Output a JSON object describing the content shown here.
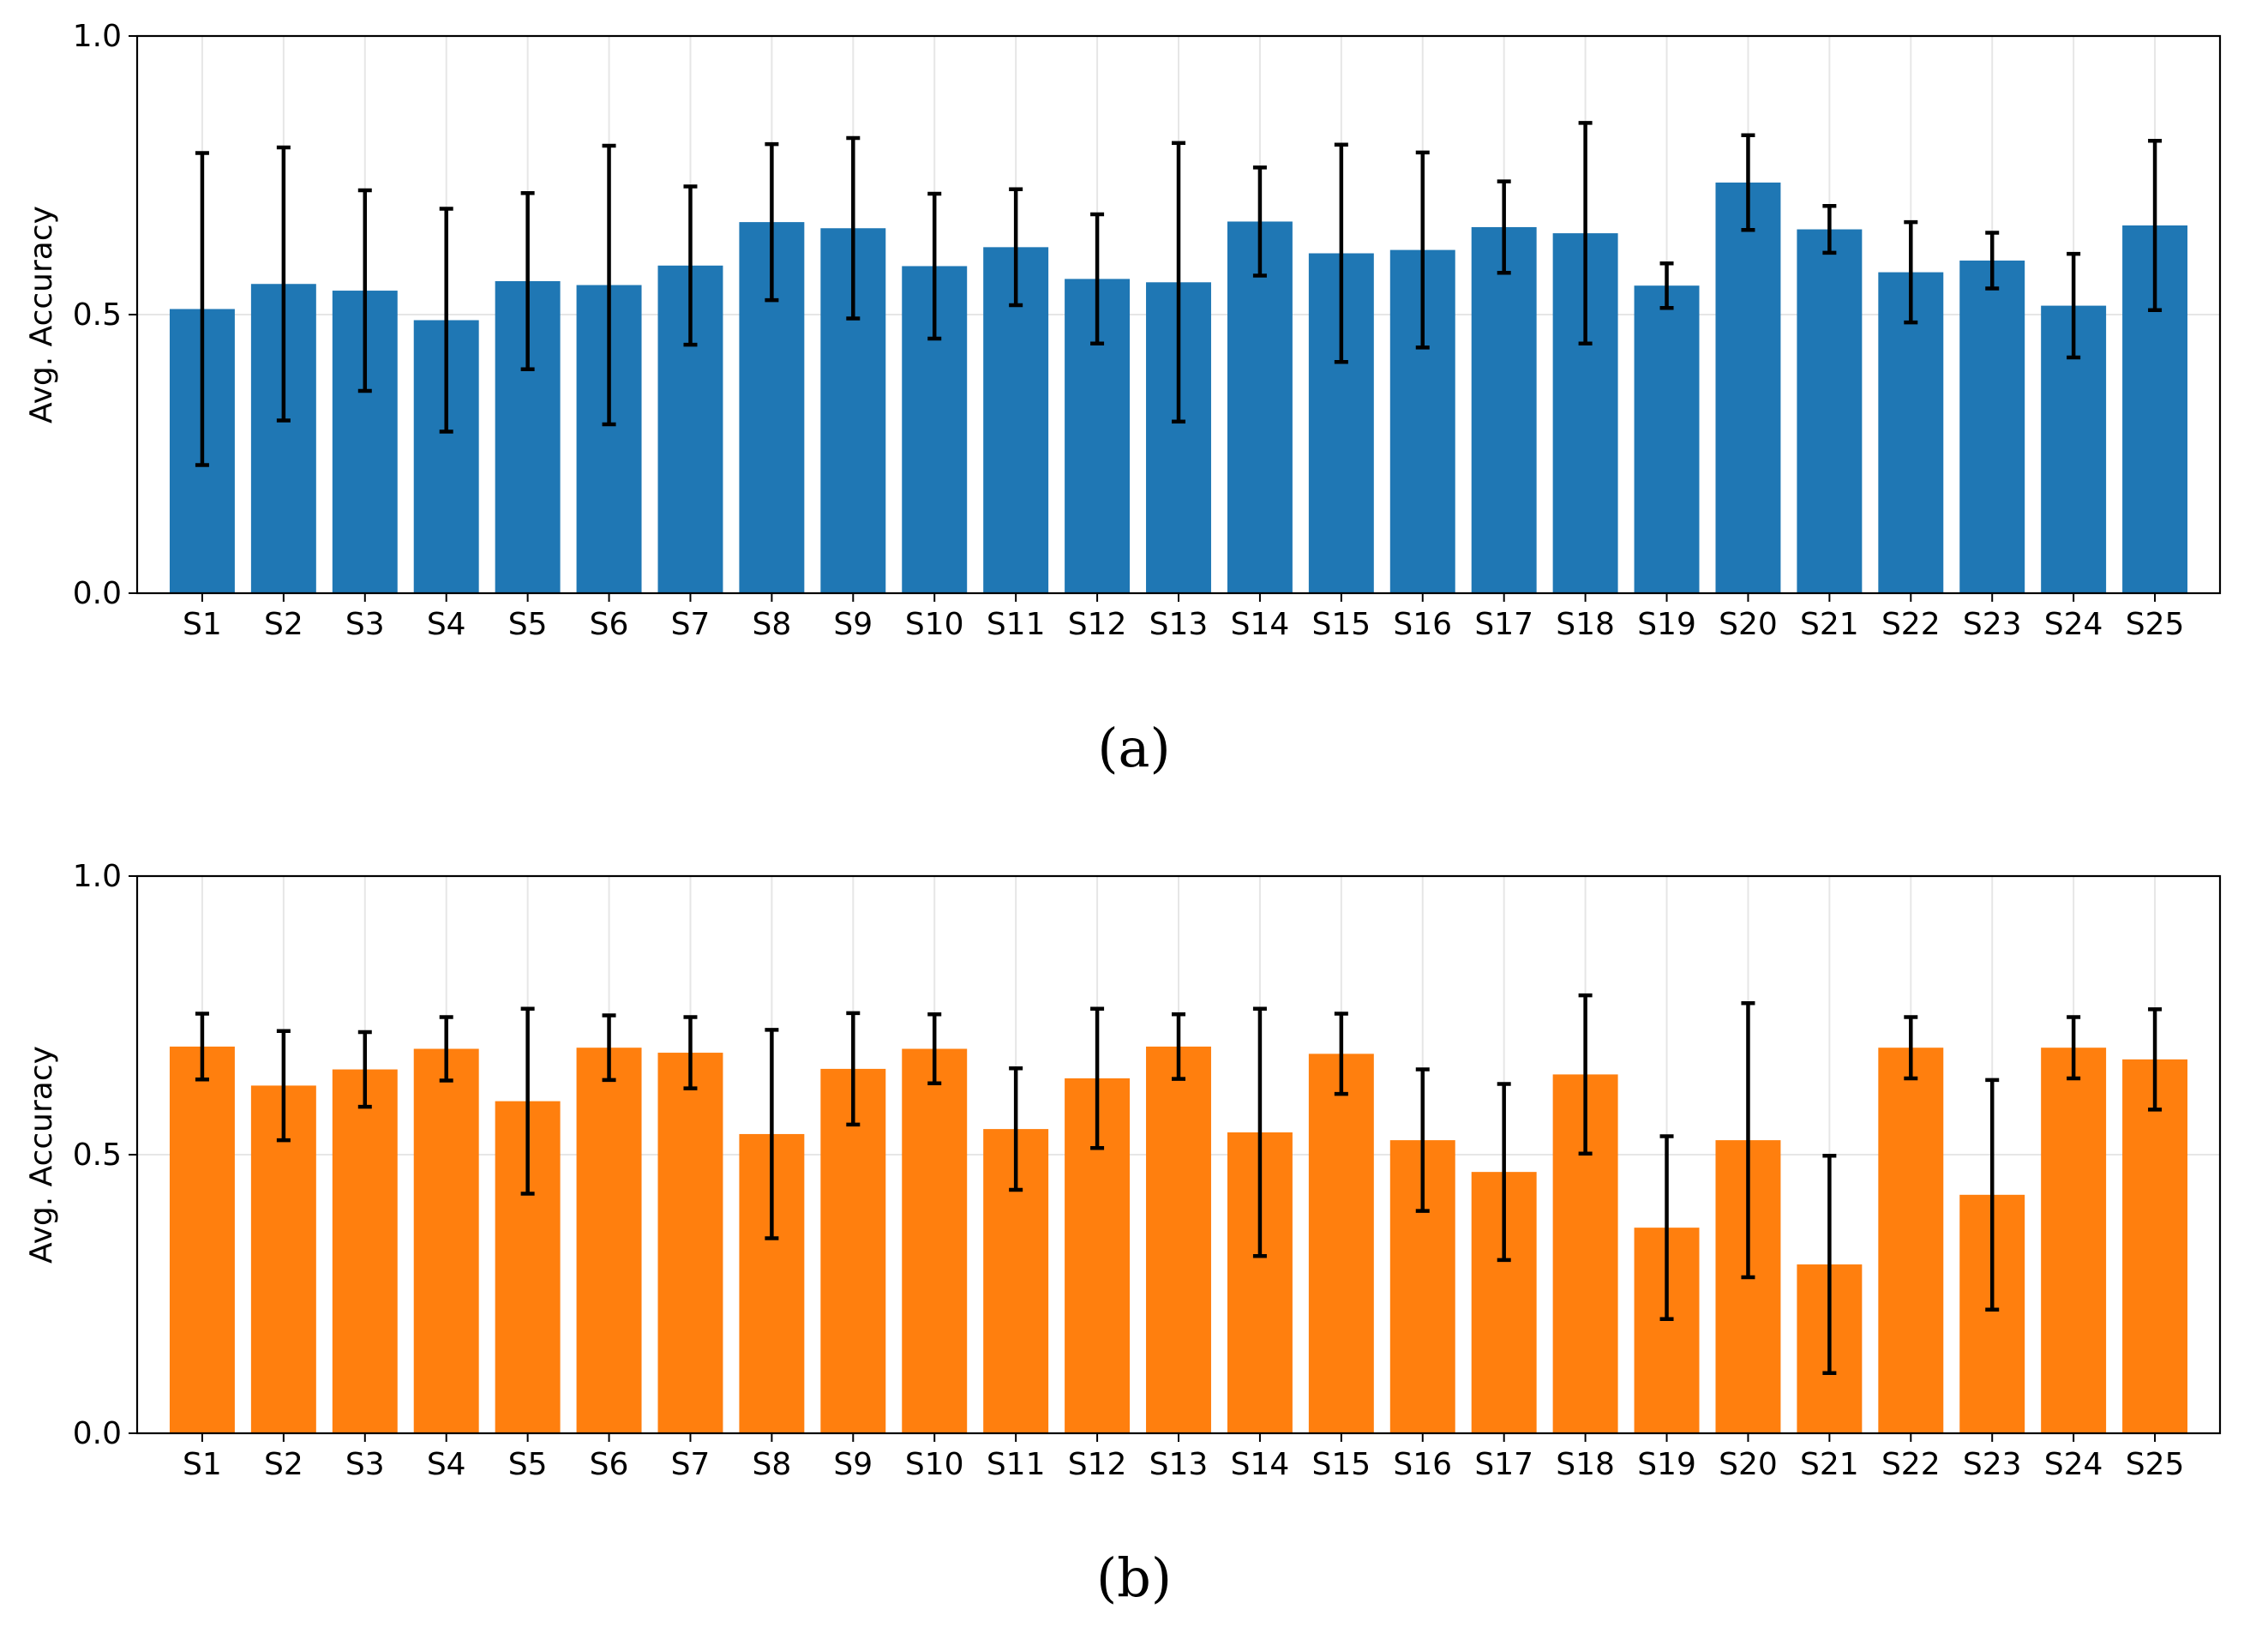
{
  "chart_data": [
    {
      "type": "bar",
      "panel_label": "(a)",
      "title": "",
      "xlabel": "",
      "ylabel": "Avg. Accuracy",
      "ylim": [
        0,
        1
      ],
      "yticks": [
        "0.0",
        "0.5",
        "1.0"
      ],
      "ytick_values": [
        0,
        0.5,
        1.0
      ],
      "grid": true,
      "color": "#1f77b4",
      "categories": [
        "S1",
        "S2",
        "S3",
        "S4",
        "S5",
        "S6",
        "S7",
        "S8",
        "S9",
        "S10",
        "S11",
        "S12",
        "S13",
        "S14",
        "S15",
        "S16",
        "S17",
        "S18",
        "S19",
        "S20",
        "S21",
        "S22",
        "S23",
        "S24",
        "S25"
      ],
      "values": [
        0.51,
        0.555,
        0.543,
        0.49,
        0.56,
        0.553,
        0.588,
        0.666,
        0.655,
        0.587,
        0.621,
        0.564,
        0.558,
        0.667,
        0.61,
        0.616,
        0.657,
        0.646,
        0.552,
        0.737,
        0.653,
        0.576,
        0.597,
        0.516,
        0.66
      ],
      "errors": [
        0.28,
        0.245,
        0.18,
        0.2,
        0.158,
        0.25,
        0.142,
        0.14,
        0.162,
        0.13,
        0.104,
        0.116,
        0.25,
        0.097,
        0.195,
        0.175,
        0.082,
        0.198,
        0.04,
        0.085,
        0.042,
        0.09,
        0.05,
        0.093,
        0.152
      ]
    },
    {
      "type": "bar",
      "panel_label": "(b)",
      "title": "",
      "xlabel": "",
      "ylabel": "Avg. Accuracy",
      "ylim": [
        0,
        1
      ],
      "yticks": [
        "0.0",
        "0.5",
        "1.0"
      ],
      "ytick_values": [
        0,
        0.5,
        1.0
      ],
      "grid": true,
      "color": "#ff7f0e",
      "categories": [
        "S1",
        "S2",
        "S3",
        "S4",
        "S5",
        "S6",
        "S7",
        "S8",
        "S9",
        "S10",
        "S11",
        "S12",
        "S13",
        "S14",
        "S15",
        "S16",
        "S17",
        "S18",
        "S19",
        "S20",
        "S21",
        "S22",
        "S23",
        "S24",
        "S25"
      ],
      "values": [
        0.694,
        0.624,
        0.653,
        0.69,
        0.596,
        0.692,
        0.683,
        0.537,
        0.654,
        0.69,
        0.546,
        0.637,
        0.694,
        0.54,
        0.681,
        0.526,
        0.469,
        0.644,
        0.369,
        0.526,
        0.303,
        0.692,
        0.428,
        0.692,
        0.671
      ],
      "errors": [
        0.059,
        0.098,
        0.067,
        0.057,
        0.166,
        0.058,
        0.064,
        0.187,
        0.1,
        0.062,
        0.109,
        0.125,
        0.058,
        0.222,
        0.072,
        0.127,
        0.158,
        0.142,
        0.164,
        0.246,
        0.195,
        0.055,
        0.206,
        0.055,
        0.09
      ]
    }
  ]
}
